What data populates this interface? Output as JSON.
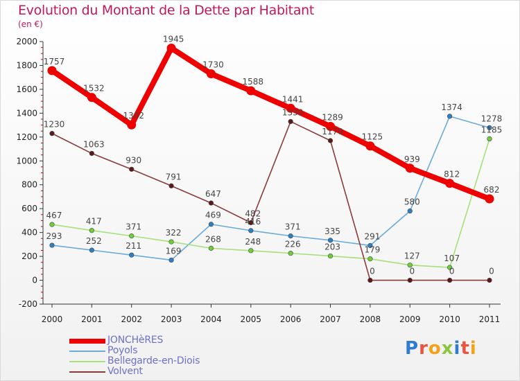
{
  "header": {
    "title": "Evolution du Montant de la Dette par Habitant",
    "subtitle": "(en €)"
  },
  "logo": {
    "text": "Proxiti",
    "colors": [
      "#2e7bcf",
      "#e8543f",
      "#f4a21b",
      "#8cc63f",
      "#2e7bcf",
      "#e8543f",
      "#f4a21b"
    ]
  },
  "chart_data": {
    "type": "line",
    "title": "Evolution du Montant de la Dette par Habitant",
    "subtitle": "(en €)",
    "xlabel": "",
    "ylabel": "",
    "categories": [
      "2000",
      "2001",
      "2002",
      "2003",
      "2004",
      "2005",
      "2006",
      "2007",
      "2008",
      "2009",
      "2010",
      "2011"
    ],
    "ylim": [
      -200,
      2000
    ],
    "yticks": [
      -200,
      0,
      200,
      400,
      600,
      800,
      1000,
      1200,
      1400,
      1600,
      1800,
      2000
    ],
    "grid": false,
    "legend_position": "bottom-left",
    "series": [
      {
        "name": "JONCHèRES",
        "color": "#ee0000",
        "bold": true,
        "values": [
          1757,
          1532,
          1302,
          1945,
          1730,
          1588,
          1441,
          1289,
          1125,
          939,
          812,
          682
        ]
      },
      {
        "name": "Poyols",
        "color": "#6aaad9",
        "bold": false,
        "values": [
          293,
          252,
          211,
          169,
          469,
          416,
          371,
          335,
          291,
          580,
          1374,
          1278
        ]
      },
      {
        "name": "Bellegarde-en-Diois",
        "color": "#a6e07a",
        "bold": false,
        "values": [
          467,
          417,
          371,
          322,
          268,
          248,
          226,
          203,
          179,
          127,
          107,
          1185
        ]
      },
      {
        "name": "Volvent",
        "color": "#8b3a3a",
        "bold": false,
        "values": [
          1230,
          1063,
          930,
          791,
          647,
          482,
          1330,
          1170,
          0,
          0,
          0,
          0
        ]
      }
    ]
  }
}
